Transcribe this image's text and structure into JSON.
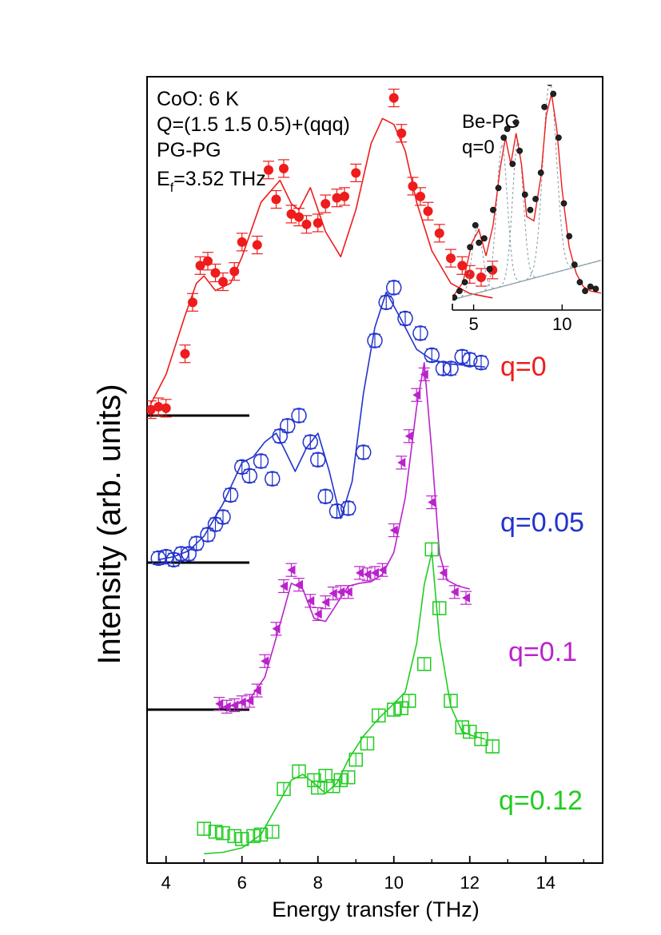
{
  "chart_data": {
    "type": "scatter",
    "xlabel": "Energy transfer (THz)",
    "ylabel": "Intensity (arb. units)",
    "xlim": [
      3.5,
      15.5
    ],
    "x_ticks": [
      "4",
      "6",
      "8",
      "10",
      "12",
      "14"
    ],
    "annotations": [
      "CoO: 6 K",
      "Q=(1.5 1.5 0.5)+(qqq)",
      "PG-PG",
      "E",
      "f",
      "=3.52 THz"
    ],
    "colors": {
      "q0": "#ee1c1c",
      "q005": "#2233cc",
      "q01": "#bb22cc",
      "q012": "#22cc22",
      "axis": "#000000"
    },
    "series": [
      {
        "name": "q=0",
        "marker": "filled-circle",
        "baseline_offset": 3,
        "x": [
          3.6,
          3.8,
          4.0,
          4.5,
          4.7,
          4.9,
          5.1,
          5.3,
          5.5,
          5.8,
          6.0,
          6.4,
          6.7,
          6.9,
          7.1,
          7.3,
          7.5,
          7.7,
          8.0,
          8.2,
          8.5,
          8.7,
          9.0,
          9.4,
          9.6,
          9.9,
          10.0,
          10.2,
          10.5,
          10.7,
          10.9,
          11.2,
          11.5,
          11.8,
          12.0,
          12.3,
          12.6
        ],
        "y": [
          0.04,
          0.06,
          0.05,
          0.42,
          0.77,
          1.02,
          1.05,
          0.97,
          0.91,
          0.98,
          1.18,
          1.16,
          1.67,
          1.47,
          1.68,
          1.37,
          1.35,
          1.3,
          1.31,
          1.44,
          1.48,
          1.49,
          1.65,
          2.38,
          2.42,
          2.38,
          2.16,
          1.92,
          1.56,
          1.49,
          1.39,
          1.24,
          1.07,
          1.02,
          0.96,
          0.94,
          0.99
        ],
        "fit_x": [
          3.6,
          4.0,
          4.5,
          4.8,
          5.0,
          5.3,
          5.7,
          6.0,
          6.5,
          7.0,
          7.3,
          7.5,
          7.8,
          8.2,
          8.6,
          9.0,
          9.4,
          9.7,
          10.0,
          10.3,
          10.6,
          11.0,
          11.5,
          12.0,
          12.6
        ],
        "fit_y": [
          0.08,
          0.28,
          0.68,
          0.9,
          0.95,
          0.85,
          0.9,
          1.08,
          1.45,
          1.6,
          1.44,
          1.4,
          1.55,
          1.25,
          1.08,
          1.4,
          1.85,
          2.02,
          1.98,
          1.8,
          1.45,
          1.12,
          0.9,
          0.83,
          0.8
        ]
      },
      {
        "name": "q=0.05",
        "marker": "open-circle",
        "baseline_offset": 2,
        "x": [
          3.8,
          4.0,
          4.2,
          4.4,
          4.6,
          4.8,
          5.1,
          5.3,
          5.5,
          5.7,
          6.0,
          6.2,
          6.5,
          6.8,
          7.0,
          7.2,
          7.5,
          7.8,
          8.0,
          8.2,
          8.5,
          8.8,
          9.2,
          9.5,
          9.8,
          10.0,
          10.3,
          10.7,
          11.0,
          11.3,
          11.5,
          11.8,
          12.0,
          12.3
        ],
        "y": [
          0.03,
          0.04,
          0.02,
          0.06,
          0.06,
          0.13,
          0.19,
          0.26,
          0.31,
          0.46,
          0.65,
          0.59,
          0.69,
          0.57,
          0.86,
          0.93,
          1.0,
          0.82,
          0.7,
          0.45,
          0.35,
          0.37,
          0.75,
          1.51,
          1.77,
          1.87,
          1.66,
          1.56,
          1.41,
          1.32,
          1.32,
          1.4,
          1.38,
          1.36
        ],
        "fit_x": [
          3.8,
          4.2,
          4.6,
          5.0,
          5.5,
          6.0,
          6.3,
          6.6,
          6.9,
          7.1,
          7.4,
          7.7,
          8.0,
          8.3,
          8.6,
          8.9,
          9.2,
          9.5,
          9.8,
          10.2,
          10.6,
          11.0,
          11.5,
          12.0,
          12.4
        ],
        "fit_y": [
          0.02,
          0.04,
          0.08,
          0.18,
          0.4,
          0.68,
          0.72,
          0.82,
          0.88,
          0.78,
          0.62,
          0.78,
          0.88,
          0.62,
          0.3,
          0.55,
          1.15,
          1.6,
          1.84,
          1.65,
          1.45,
          1.38,
          1.35,
          1.34,
          1.33
        ]
      },
      {
        "name": "q=0.1",
        "marker": "filled-left-triangle",
        "baseline_offset": 1,
        "x": [
          5.4,
          5.6,
          5.8,
          6.0,
          6.2,
          6.4,
          6.6,
          6.9,
          7.1,
          7.3,
          7.5,
          7.8,
          8.0,
          8.2,
          8.4,
          8.6,
          8.8,
          9.1,
          9.3,
          9.5,
          9.7,
          10.0,
          10.2,
          10.4,
          10.6,
          10.8,
          11.0,
          11.3,
          11.6,
          11.9
        ],
        "y": [
          0.04,
          0.02,
          0.03,
          0.05,
          0.06,
          0.13,
          0.33,
          0.55,
          0.84,
          0.95,
          0.85,
          0.74,
          0.65,
          0.73,
          0.79,
          0.8,
          0.8,
          0.93,
          0.92,
          0.93,
          0.95,
          1.22,
          1.68,
          1.86,
          2.14,
          2.28,
          1.41,
          0.93,
          0.8,
          0.76
        ],
        "fit_x": [
          5.4,
          5.8,
          6.2,
          6.6,
          7.0,
          7.3,
          7.6,
          7.9,
          8.2,
          8.5,
          8.8,
          9.1,
          9.4,
          9.7,
          10.0,
          10.3,
          10.6,
          10.8,
          11.0,
          11.2,
          11.4,
          11.7,
          12.0
        ],
        "fit_y": [
          0.01,
          0.03,
          0.07,
          0.22,
          0.58,
          0.86,
          0.82,
          0.62,
          0.6,
          0.72,
          0.84,
          0.86,
          0.87,
          0.92,
          1.07,
          1.44,
          2.06,
          2.36,
          1.75,
          1.06,
          0.88,
          0.84,
          0.82
        ]
      },
      {
        "name": "q=0.12",
        "marker": "open-square",
        "baseline_offset": 0,
        "x": [
          5.0,
          5.3,
          5.5,
          5.8,
          6.0,
          6.3,
          6.5,
          6.8,
          7.1,
          7.5,
          7.9,
          8.0,
          8.2,
          8.4,
          8.6,
          8.8,
          9.0,
          9.3,
          9.6,
          10.0,
          10.2,
          10.4,
          10.8,
          11.0,
          11.2,
          11.5,
          11.8,
          12.0,
          12.3,
          12.6
        ],
        "y": [
          0.19,
          0.17,
          0.16,
          0.14,
          0.12,
          0.14,
          0.15,
          0.17,
          0.46,
          0.58,
          0.52,
          0.47,
          0.55,
          0.48,
          0.52,
          0.54,
          0.66,
          0.77,
          0.96,
          1.0,
          1.01,
          1.06,
          1.31,
          2.09,
          1.69,
          1.06,
          0.88,
          0.85,
          0.8,
          0.75
        ],
        "fit_x": [
          5.0,
          5.5,
          6.0,
          6.5,
          7.0,
          7.3,
          7.6,
          7.9,
          8.2,
          8.5,
          8.8,
          9.2,
          9.6,
          10.0,
          10.3,
          10.6,
          10.8,
          11.0,
          11.2,
          11.5,
          11.8,
          12.1,
          12.4
        ],
        "fit_y": [
          0.02,
          0.03,
          0.06,
          0.15,
          0.38,
          0.52,
          0.56,
          0.5,
          0.43,
          0.5,
          0.66,
          0.82,
          0.94,
          1.04,
          1.12,
          1.45,
          1.85,
          2.07,
          1.48,
          1.02,
          0.85,
          0.82,
          0.8
        ]
      }
    ],
    "inset": {
      "type": "scatter",
      "annotations": [
        "Be-PG",
        "q=0"
      ],
      "xlim": [
        3.8,
        12.2
      ],
      "x_ticks": [
        "5",
        "10"
      ],
      "x": [
        3.9,
        4.2,
        4.5,
        4.8,
        5.1,
        5.3,
        5.6,
        5.9,
        6.1,
        6.4,
        6.7,
        6.9,
        7.2,
        7.4,
        7.6,
        7.9,
        8.2,
        8.5,
        8.8,
        9.0,
        9.3,
        9.5,
        9.8,
        10.1,
        10.4,
        10.7,
        11.0,
        11.3,
        11.6,
        11.9
      ],
      "y": [
        0.05,
        0.08,
        0.12,
        0.28,
        0.38,
        0.3,
        0.32,
        0.18,
        0.45,
        0.55,
        0.78,
        0.82,
        0.66,
        0.85,
        0.72,
        0.52,
        0.45,
        0.5,
        0.62,
        0.92,
        1.03,
        0.98,
        0.78,
        0.48,
        0.33,
        0.2,
        0.12,
        0.08,
        0.1,
        0.09
      ],
      "fit_x": [
        3.8,
        4.4,
        4.9,
        5.3,
        5.7,
        6.1,
        6.5,
        6.8,
        7.1,
        7.4,
        7.7,
        8.0,
        8.4,
        8.8,
        9.1,
        9.4,
        9.7,
        10.0,
        10.4,
        10.8,
        11.2,
        11.6,
        12.2
      ],
      "fit_y": [
        0.05,
        0.12,
        0.3,
        0.36,
        0.24,
        0.38,
        0.64,
        0.78,
        0.66,
        0.8,
        0.66,
        0.42,
        0.4,
        0.6,
        0.88,
        0.98,
        0.82,
        0.54,
        0.28,
        0.16,
        0.1,
        0.08,
        0.07
      ],
      "components": [
        {
          "center": 5.2,
          "height": 0.3,
          "width": 0.3
        },
        {
          "center": 6.6,
          "height": 0.65,
          "width": 0.3
        },
        {
          "center": 7.5,
          "height": 0.65,
          "width": 0.3
        },
        {
          "center": 9.3,
          "height": 0.88,
          "width": 0.38
        }
      ],
      "background": {
        "x": [
          3.8,
          12.2
        ],
        "y": [
          0.04,
          0.22
        ]
      }
    }
  }
}
